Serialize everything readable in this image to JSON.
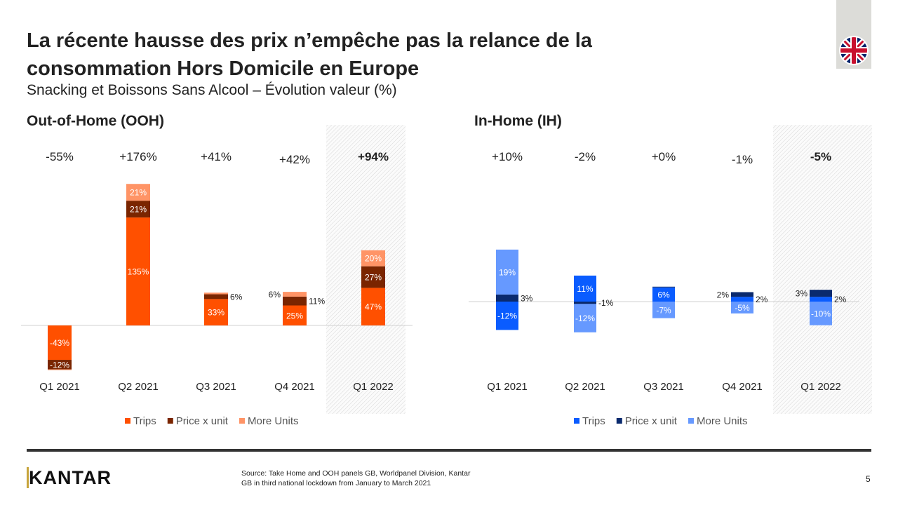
{
  "title": "La récente hausse des prix n’empêche pas la relance de la consommation Hors Domicile en Europe",
  "subtitle": "Snacking et Boissons Sans Alcool – Évolution valeur (%)",
  "flag_icon": "uk-flag-icon",
  "logo": "KANTAR",
  "source_lines": [
    "Source: Take Home and OOH  panels GB, Worldpanel Division, Kantar",
    "GB in third national lockdown from January to March 2021"
  ],
  "page_number": "5",
  "chart_data": [
    {
      "type": "bar",
      "stacked": true,
      "title": "Out-of-Home (OOH)",
      "categories": [
        "Q1 2021",
        "Q2 2021",
        "Q3 2021",
        "Q4 2021",
        "Q1 2022"
      ],
      "totals": [
        "-55%",
        "+176%",
        "+41%",
        "+42%",
        "+94%"
      ],
      "highlighted_category": "Q1 2022",
      "series": [
        {
          "name": "Trips",
          "color": "#ff5000",
          "values": [
            -43,
            135,
            33,
            25,
            47
          ],
          "labels": [
            "-43%",
            "135%",
            "33%",
            "25%",
            "47%"
          ]
        },
        {
          "name": "Price x unit",
          "color": "#7a2500",
          "values": [
            -12,
            21,
            6,
            11,
            27
          ],
          "labels": [
            "-12%",
            "21%",
            "6%",
            "11%",
            "27%"
          ]
        },
        {
          "name": "More Units",
          "color": "#ff9466",
          "values": [
            -0.5,
            21,
            2,
            6,
            20
          ],
          "labels": [
            "",
            "21%",
            "",
            "6%",
            "20%"
          ]
        }
      ],
      "legend": "bottom",
      "grid": false
    },
    {
      "type": "bar",
      "stacked": true,
      "title": "In-Home (IH)",
      "categories": [
        "Q1 2021",
        "Q2 2021",
        "Q3 2021",
        "Q4 2021",
        "Q1 2022"
      ],
      "totals": [
        "+10%",
        "-2%",
        "+0%",
        "-1%",
        "-5%"
      ],
      "highlighted_category": "Q1 2022",
      "series": [
        {
          "name": "Trips",
          "color": "#0a5cff",
          "values": [
            -12,
            11,
            6,
            2,
            2
          ],
          "labels": [
            "-12%",
            "11%",
            "6%",
            "2%",
            "2%"
          ]
        },
        {
          "name": "Price x unit",
          "color": "#0a2a6e",
          "values": [
            3,
            -1,
            0.3,
            2,
            3
          ],
          "labels": [
            "3%",
            "-1%",
            "",
            "2%",
            "3%"
          ]
        },
        {
          "name": "More Units",
          "color": "#6699ff",
          "values": [
            19,
            -12,
            -7,
            -5,
            -10
          ],
          "labels": [
            "19%",
            "-12%",
            "-7%",
            "-5%",
            "-10%"
          ]
        }
      ],
      "legend": "bottom",
      "grid": false
    }
  ]
}
